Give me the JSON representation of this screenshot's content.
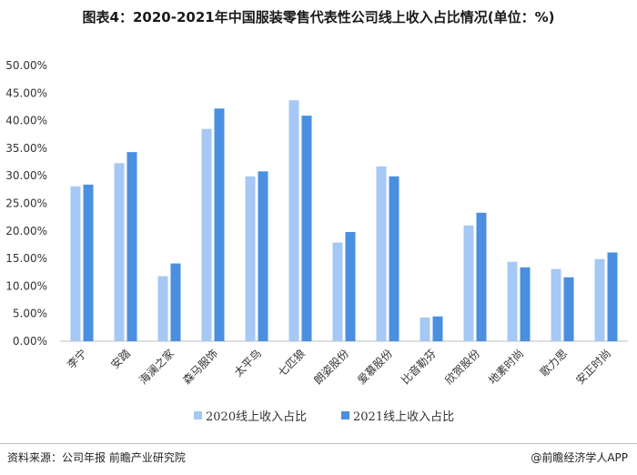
{
  "title": "图表4：2020-2021年中国服装零售代表性公司线上收入占比情况(单位：%)",
  "source": "资料来源：公司年报 前瞻产业研究院",
  "brand": "@前瞻经济学人APP",
  "chart_data": {
    "type": "bar",
    "categories": [
      "李宁",
      "安踏",
      "海澜之家",
      "森马服饰",
      "太平鸟",
      "七匹狼",
      "朗姿股份",
      "爱慕股份",
      "比音勒芬",
      "欣贺股份",
      "地素时尚",
      "歌力思",
      "安正时尚"
    ],
    "series": [
      {
        "name": "2020线上收入占比",
        "values": [
          28.1,
          32.3,
          11.8,
          38.5,
          29.9,
          43.7,
          17.9,
          31.7,
          4.3,
          21.0,
          14.4,
          13.1,
          14.9
        ]
      },
      {
        "name": "2021线上收入占比",
        "values": [
          28.4,
          34.3,
          14.1,
          42.2,
          30.8,
          40.9,
          19.8,
          29.9,
          4.5,
          23.3,
          13.4,
          11.6,
          16.1
        ]
      }
    ],
    "ylim": [
      0,
      50
    ],
    "yticks": [
      "0.00%",
      "5.00%",
      "10.00%",
      "15.00%",
      "20.00%",
      "25.00%",
      "30.00%",
      "35.00%",
      "40.00%",
      "45.00%",
      "50.00%"
    ],
    "grid": false,
    "legend": "bottom",
    "colors": [
      "#a6c8f4",
      "#4a8fe0"
    ]
  }
}
